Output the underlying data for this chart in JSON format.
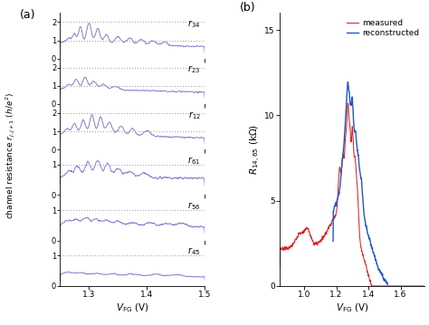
{
  "line_color_left": "#7777cc",
  "line_color_measured": "#dd2222",
  "line_color_reconstructed": "#2255cc",
  "bg_color": "#ffffff",
  "panel_a_xlabel": "$V_\\mathrm{FG}$ (V)",
  "panel_a_ylabel": "channel resistance $r_{j,j+1}$ ($h/e^2$)",
  "panel_b_xlabel": "$V_\\mathrm{FG}$ (V)",
  "panel_b_ylabel": "$R_{14,65}$ (k$\\Omega$)",
  "panel_b_xlim": [
    0.85,
    1.75
  ],
  "panel_b_ylim": [
    0,
    16
  ],
  "panel_a_xlim": [
    1.25,
    1.5
  ],
  "subplots": [
    {
      "label": "$r_{34}$",
      "ylim": [
        0,
        2.5
      ],
      "yticks": [
        0,
        1,
        2
      ],
      "dashed": [
        1,
        2
      ]
    },
    {
      "label": "$r_{23}$",
      "ylim": [
        0,
        2.5
      ],
      "yticks": [
        0,
        1,
        2
      ],
      "dashed": [
        1,
        2
      ]
    },
    {
      "label": "$r_{12}$",
      "ylim": [
        0,
        2.5
      ],
      "yticks": [
        0,
        1,
        2
      ],
      "dashed": [
        1,
        2
      ]
    },
    {
      "label": "$r_{61}$",
      "ylim": [
        0,
        1.5
      ],
      "yticks": [
        0,
        1
      ],
      "dashed": [
        1
      ]
    },
    {
      "label": "$r_{56}$",
      "ylim": [
        0,
        1.5
      ],
      "yticks": [
        0,
        1
      ],
      "dashed": [
        1
      ]
    },
    {
      "label": "$r_{45}$",
      "ylim": [
        0,
        1.5
      ],
      "yticks": [
        0,
        1
      ],
      "dashed": [
        1
      ]
    }
  ]
}
